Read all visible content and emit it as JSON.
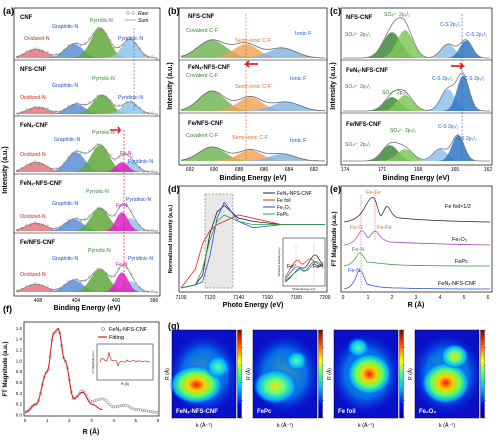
{
  "panel_a": {
    "letter": "(a)",
    "legend": [
      "Raw",
      "Sum"
    ],
    "ylabel": "Intensity (a.u.)",
    "xlabel": "Binding Energy (eV)",
    "xticks": [
      "408",
      "404",
      "400",
      "396"
    ],
    "subplots": [
      {
        "label": "CNF",
        "peaks": [
          "Oxidized-N",
          "Graphitic-N",
          "Pyrrolic-N",
          "Pyridinic-N"
        ]
      },
      {
        "label": "NFS-CNF",
        "peaks": [
          "Oxidized-N",
          "Graphitic-N",
          "Pyrrolic-N",
          "Pyridinic-N"
        ]
      },
      {
        "label": "FeNₓ-CNF",
        "peaks": [
          "Oxidized-N",
          "Graphitic-N",
          "Pyrrolic-N",
          "Pyridinic-N",
          "Fe-N"
        ]
      },
      {
        "label": "FeNₓ-NFS-CNF",
        "peaks": [
          "Oxidized-N",
          "Graphitic-N",
          "Pyrrolic-N",
          "Pyridinic-N",
          "Fe-N"
        ]
      },
      {
        "label": "Fe/NFS-CNF",
        "peaks": [
          "Oxidized-N",
          "Graphitic-N",
          "Pyrrolic-N",
          "Pyridinic-N",
          "Fe-N"
        ]
      }
    ]
  },
  "panel_b": {
    "letter": "(b)",
    "ylabel": "Intensity (a.u.)",
    "xlabel": "Binding Energy (eV)",
    "xticks": [
      "692",
      "690",
      "688",
      "686",
      "684",
      "682"
    ],
    "subplots": [
      {
        "label": "NFS-CNF",
        "peaks": [
          "Covalent C-F",
          "Semi-ionic C-F",
          "Ionic F"
        ]
      },
      {
        "label": "FeNₓ-NFS-CNF",
        "peaks": [
          "Covalent C-F",
          "Semi-ionic C-F",
          "Ionic F"
        ]
      },
      {
        "label": "Fe/NFS-CNF",
        "peaks": [
          "Covalent C-F",
          "Semi-ionic C-F",
          "Ionic F"
        ]
      }
    ]
  },
  "panel_c": {
    "letter": "(c)",
    "ylabel": "Intensity (a.u.)",
    "xlabel": "Binding Energy (eV)",
    "xticks": [
      "174",
      "171",
      "168",
      "165",
      "162"
    ],
    "subplots": [
      {
        "label": "NFS-CNF",
        "peaks": [
          "SO₄²⁻ 2p₁/₂",
          "SO₄²⁻ 2p₃/₂",
          "C-S 2p₁/₂",
          "C-S 2p₃/₂"
        ]
      },
      {
        "label": "FeNₓ-NFS-CNF",
        "peaks": [
          "SO₄²⁻ 2p₁/₂",
          "SO₄²⁻ 2p₃/₂",
          "C-S 2p₁/₂",
          "C-S 2p₃/₂"
        ]
      },
      {
        "label": "Fe/NFS-CNF",
        "peaks": [
          "SO₄²⁻ 2p₁/₂",
          "SO₄²⁻ 2p₃/₂",
          "C-S 2p₁/₂",
          "C-S 2p₃/₂"
        ]
      }
    ]
  },
  "panel_d": {
    "letter": "(d)",
    "ylabel": "Normalized intensity (a.u.)",
    "xlabel": "Photo Energy (eV)",
    "xticks": [
      "7100",
      "7120",
      "7140",
      "7160",
      "7180",
      "7200"
    ],
    "legend": [
      "FeNₓ-NFS-CNF",
      "Fe foil",
      "Fe₂O₃",
      "FePc"
    ],
    "inset_labels": [
      "Fe⁰",
      "Fe³⁺"
    ],
    "inset_xlabel": "Photo Energy (eV)",
    "inset_ylabel": "Derivative Intensity (a.u.)"
  },
  "panel_e": {
    "letter": "(e)",
    "ylabel": "FT Magnitude (a.u.)",
    "xlabel": "R (Å)",
    "xticks": [
      "0",
      "1",
      "2",
      "3",
      "4",
      "5",
      "6"
    ],
    "curves": [
      "Fe foil×1/2",
      "Fe₂O₃",
      "FePc",
      "FeNₓ-NFS-CNF"
    ],
    "annotations": [
      "Fe-Fe",
      "Fe-O",
      "Fe-Fe",
      "Fe-N",
      "Fe-N"
    ]
  },
  "panel_f": {
    "letter": "(f)",
    "ylabel": "FT Magnitude (a.u.)",
    "xlabel": "R (Å)",
    "xticks": [
      "0",
      "1",
      "2",
      "3",
      "4",
      "5",
      "6"
    ],
    "yticks": [
      "0.0",
      "0.2",
      "0.4",
      "0.6",
      "0.8",
      "1.0",
      "1.2",
      "1.4",
      "1.6"
    ],
    "legend": [
      "FeNₓ-NFS-CNF",
      "Fitting"
    ],
    "inset_xlabel": "R (Å)",
    "inset_ylabel": "FT Magnitude (a.u.)"
  },
  "panel_g": {
    "letter": "(g)",
    "ylabel": "R (Å)",
    "xlabel": "k (Å⁻¹)",
    "maps": [
      "FeNₓ-NFS-CNF",
      "FePc",
      "Fe foil",
      "Fe₂O₃"
    ]
  },
  "colors": {
    "oxidized": "#e8747c",
    "graphitic": "#5a8fd6",
    "pyrrolic": "#5fa83a",
    "pyridinic": "#8ec6ea",
    "fen": "#e020c8",
    "covalent": "#6db24e",
    "semiionic": "#f0a050",
    "ionic": "#7fb2e0",
    "so4_12": "#3f8a3a",
    "so4_32": "#7fc85a",
    "cs_12": "#8fc2ec",
    "cs_32": "#2f76c6",
    "red_accent": "#e02020"
  },
  "chart_data": [
    {
      "type": "line",
      "title": "",
      "xlabel": "Photo Energy (eV)",
      "ylabel": "Normalized intensity (a.u.)",
      "xlim": [
        7100,
        7200
      ],
      "series": [
        {
          "name": "FeNₓ-NFS-CNF",
          "x": [
            7100,
            7110,
            7115,
            7120,
            7125,
            7130,
            7140,
            7150,
            7170,
            7200
          ],
          "values": [
            0.0,
            0.05,
            0.2,
            0.85,
            1.2,
            1.3,
            1.1,
            1.05,
            1.0,
            1.0
          ]
        },
        {
          "name": "Fe foil",
          "x": [
            7100,
            7110,
            7115,
            7120,
            7125,
            7130,
            7140,
            7150,
            7170,
            7200
          ],
          "values": [
            0.0,
            0.3,
            0.7,
            0.9,
            1.0,
            1.05,
            1.15,
            1.1,
            1.0,
            1.0
          ]
        },
        {
          "name": "Fe₂O₃",
          "x": [
            7100,
            7110,
            7115,
            7120,
            7125,
            7130,
            7140,
            7150,
            7170,
            7200
          ],
          "values": [
            0.0,
            0.05,
            0.1,
            0.5,
            1.1,
            1.35,
            1.05,
            0.95,
            1.0,
            1.0
          ]
        },
        {
          "name": "FePc",
          "x": [
            7100,
            7110,
            7115,
            7120,
            7125,
            7130,
            7140,
            7150,
            7170,
            7200
          ],
          "values": [
            0.0,
            0.05,
            0.3,
            0.75,
            1.05,
            1.15,
            1.05,
            1.0,
            1.0,
            1.0
          ]
        }
      ]
    },
    {
      "type": "line",
      "title": "",
      "xlabel": "R (Å)",
      "ylabel": "FT Magnitude (a.u.)",
      "xlim": [
        0,
        6
      ],
      "ylim": [
        0,
        1.7
      ],
      "series": [
        {
          "name": "FeNₓ-NFS-CNF",
          "x": [
            0.0,
            0.5,
            1.0,
            1.3,
            1.5,
            1.8,
            2.2,
            2.6,
            3.0,
            3.5,
            4.0,
            4.5,
            5.0,
            6.0
          ],
          "values": [
            0.05,
            0.2,
            0.8,
            1.5,
            1.58,
            1.0,
            0.3,
            0.45,
            0.25,
            0.3,
            0.15,
            0.18,
            0.1,
            0.05
          ]
        },
        {
          "name": "Fitting",
          "x": [
            0.0,
            0.5,
            1.0,
            1.3,
            1.5,
            1.8,
            2.2,
            2.6,
            3.0,
            3.5
          ],
          "values": [
            0.05,
            0.2,
            0.8,
            1.52,
            1.6,
            1.0,
            0.3,
            0.42,
            0.2,
            0.1
          ]
        }
      ]
    }
  ]
}
